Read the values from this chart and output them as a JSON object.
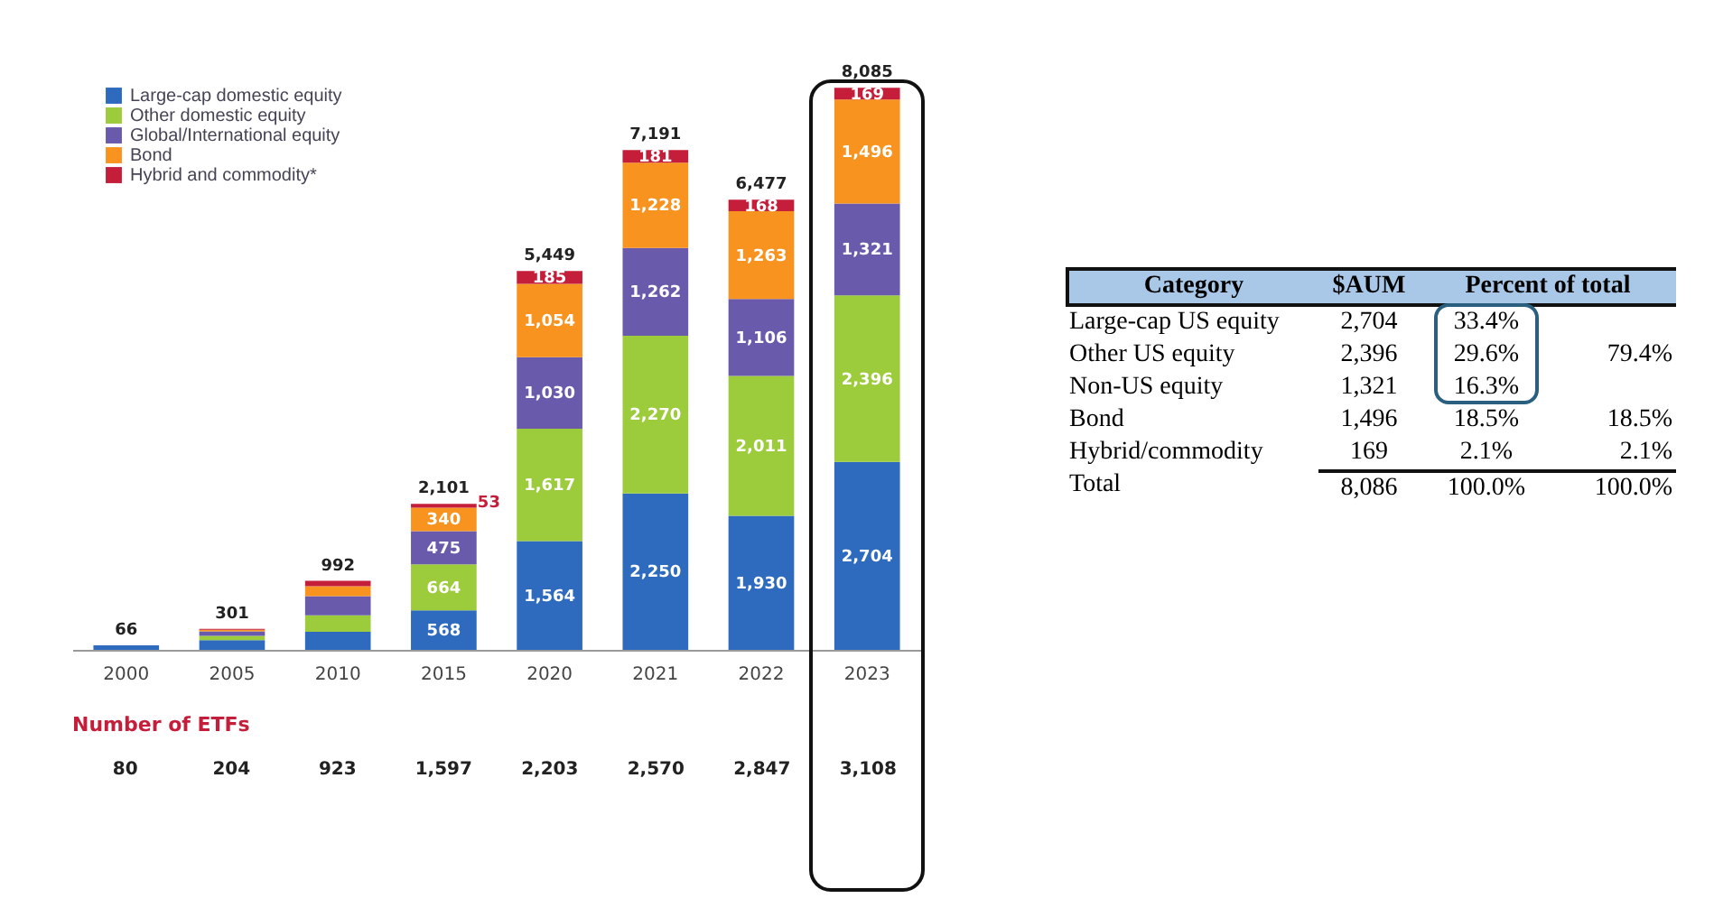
{
  "chart_data": [
    {
      "type": "bar",
      "stacked": true,
      "legend": "top left",
      "categories": [
        "2000",
        "2005",
        "2010",
        "2015",
        "2020",
        "2021",
        "2022",
        "2023"
      ],
      "series": [
        {
          "name": "Large-cap domestic equity",
          "color": "#2e6bbf",
          "values": [
            66,
            140,
            260,
            568,
            1564,
            2250,
            1930,
            2704
          ],
          "value_labels": [
            null,
            null,
            null,
            "568",
            "1,564",
            "2,250",
            "1,930",
            "2,704"
          ]
        },
        {
          "name": "Other domestic equity",
          "color": "#9ccb3b",
          "values": [
            0,
            60,
            236,
            664,
            1617,
            2270,
            2011,
            2396
          ],
          "value_labels": [
            null,
            null,
            null,
            "664",
            "1,617",
            "2,270",
            "2,011",
            "2,396"
          ]
        },
        {
          "name": "Global/International equity",
          "color": "#6a5aab",
          "values": [
            0,
            65,
            276,
            475,
            1030,
            1262,
            1106,
            1321
          ],
          "value_labels": [
            null,
            null,
            null,
            "475",
            "1,030",
            "1,262",
            "1,106",
            "1,321"
          ]
        },
        {
          "name": "Bond",
          "color": "#f7931e",
          "values": [
            0,
            25,
            142,
            340,
            1054,
            1228,
            1263,
            1496
          ],
          "value_labels": [
            null,
            null,
            null,
            "340",
            "1,054",
            "1,228",
            "1,263",
            "1,496"
          ]
        },
        {
          "name": "Hybrid and commodity*",
          "color": "#c41e3a",
          "values": [
            0,
            11,
            78,
            53,
            185,
            181,
            168,
            169
          ],
          "value_labels": [
            null,
            null,
            null,
            "53",
            "185",
            "181",
            "168",
            "169"
          ]
        }
      ],
      "totals": [
        "66",
        "301",
        "992",
        "2,101",
        "5,449",
        "7,191",
        "6,477",
        "8,085"
      ],
      "annotations": [
        "Number of ETFs",
        "80",
        "204",
        "923",
        "1,597",
        "2,203",
        "2,570",
        "2,847",
        "3,108"
      ]
    },
    {
      "type": "other",
      "annotations": [
        "Category",
        "$AUM",
        "Percent of total",
        "Large-cap US equity",
        "2,704",
        "33.4%",
        "Other US equity",
        "2,396",
        "29.6%",
        "79.4%",
        "Non-US equity",
        "1,321",
        "16.3%",
        "Bond",
        "1,496",
        "18.5%",
        "18.5%",
        "Hybrid/commodity",
        "169",
        "2.1%",
        "2.1%",
        "Total",
        "8,086",
        "100.0%",
        "100.0%"
      ]
    }
  ]
}
